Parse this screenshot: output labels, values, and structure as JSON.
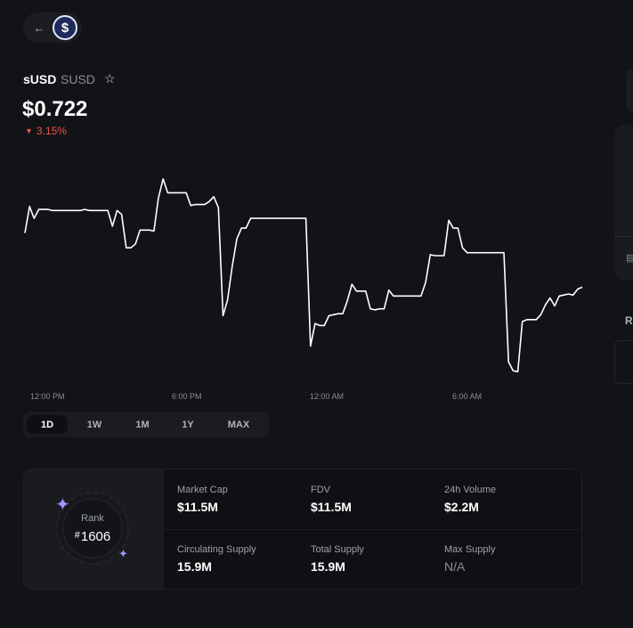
{
  "token": {
    "name": "sUSD",
    "symbol": "SUSD",
    "logo_glyph": "$",
    "price": "$0.722",
    "change": "3.15%",
    "change_direction": "down",
    "colors": {
      "negative": "#f0524f",
      "line": "#ffffff",
      "accent": "#9f95ff"
    }
  },
  "nav": {
    "back_icon": "arrow-left-icon",
    "star_icon": "star-outline-icon"
  },
  "chart_data": {
    "type": "line",
    "title": "",
    "xlabel": "",
    "ylabel": "",
    "x_tick_labels": [
      "12:00 PM",
      "6:00 PM",
      "12:00 AM",
      "6:00 AM"
    ],
    "ylim": [
      0.68,
      0.8
    ],
    "series": [
      {
        "values": [
          0.7585,
          0.772,
          0.766,
          0.7705,
          0.7705,
          0.7705,
          0.77,
          0.77,
          0.77,
          0.77,
          0.77,
          0.77,
          0.77,
          0.7705,
          0.77,
          0.77,
          0.77,
          0.77,
          0.77,
          0.762,
          0.77,
          0.768,
          0.751,
          0.751,
          0.753,
          0.76,
          0.76,
          0.76,
          0.7595,
          0.7765,
          0.786,
          0.779,
          0.779,
          0.779,
          0.779,
          0.779,
          0.7725,
          0.773,
          0.773,
          0.773,
          0.7745,
          0.777,
          0.7715,
          0.7165,
          0.7245,
          0.7415,
          0.7555,
          0.761,
          0.761,
          0.766,
          0.766,
          0.766,
          0.766,
          0.766,
          0.766,
          0.766,
          0.766,
          0.766,
          0.766,
          0.766,
          0.766,
          0.766,
          0.701,
          0.7125,
          0.7115,
          0.7115,
          0.7165,
          0.717,
          0.7175,
          0.7175,
          0.724,
          0.7325,
          0.729,
          0.729,
          0.729,
          0.72,
          0.7195,
          0.72,
          0.72,
          0.7295,
          0.7265,
          0.7265,
          0.7265,
          0.7265,
          0.7265,
          0.7265,
          0.7265,
          0.7335,
          0.7475,
          0.747,
          0.747,
          0.747,
          0.765,
          0.761,
          0.761,
          0.751,
          0.7485,
          0.7485,
          0.7485,
          0.7485,
          0.7485,
          0.7485,
          0.7485,
          0.7485,
          0.7485,
          0.693,
          0.6885,
          0.688,
          0.7135,
          0.7145,
          0.7145,
          0.7145,
          0.717,
          0.722,
          0.7255,
          0.7215,
          0.7265,
          0.727,
          0.7275,
          0.727,
          0.73,
          0.731
        ]
      }
    ],
    "grid": false,
    "legend": "none"
  },
  "range_tabs": {
    "tabs": [
      "1D",
      "1W",
      "1M",
      "1Y",
      "MAX"
    ],
    "active": "1D"
  },
  "rank": {
    "label": "Rank",
    "hash": "#",
    "value": "1606"
  },
  "stats": [
    {
      "label": "Market Cap",
      "value": "$11.5M"
    },
    {
      "label": "FDV",
      "value": "$11.5M"
    },
    {
      "label": "24h Volume",
      "value": "$2.2M"
    },
    {
      "label": "Circulating Supply",
      "value": "15.9M"
    },
    {
      "label": "Total Supply",
      "value": "15.9M"
    },
    {
      "label": "Max Supply",
      "value": "N/A"
    }
  ],
  "sidebar": {
    "partial_text": "R"
  }
}
